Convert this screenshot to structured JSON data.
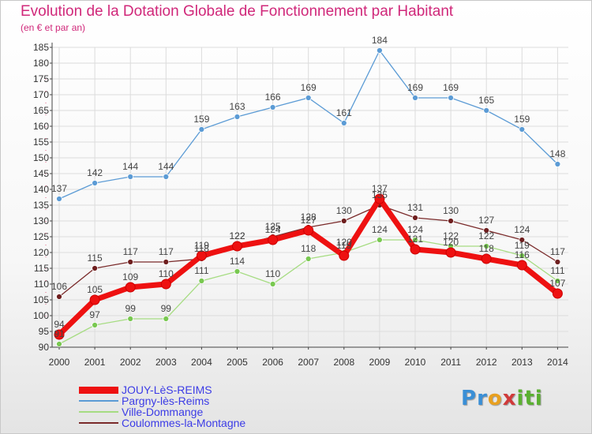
{
  "title": "Evolution de la Dotation Globale de Fonctionnement par Habitant",
  "subtitle": "(en € et par an)",
  "brand": {
    "text": "Proxiti",
    "colors": [
      "#3a8fd6",
      "#e8a020",
      "#d03a3a",
      "#5ab030"
    ]
  },
  "chart_data": {
    "type": "line",
    "title": "Evolution de la Dotation Globale de Fonctionnement par Habitant",
    "subtitle": "(en € et par an)",
    "xlabel": "",
    "ylabel": "",
    "ylim": [
      90,
      185
    ],
    "yticks": [
      90,
      95,
      100,
      105,
      110,
      115,
      120,
      125,
      130,
      135,
      140,
      145,
      150,
      155,
      160,
      165,
      170,
      175,
      180,
      185
    ],
    "grid": true,
    "legend_position": "bottom-left",
    "categories": [
      "2000",
      "2001",
      "2002",
      "2003",
      "2004",
      "2005",
      "2006",
      "2007",
      "2008",
      "2009",
      "2010",
      "2011",
      "2012",
      "2013",
      "2014"
    ],
    "series": [
      {
        "name": "JOUY-LèS-REIMS",
        "color": "#ee1111",
        "emphasis": true,
        "values": [
          94,
          105,
          109,
          110,
          119,
          122,
          124,
          127,
          119,
          137,
          121,
          120,
          118,
          116,
          107
        ]
      },
      {
        "name": "Pargny-lès-Reims",
        "color": "#5b9bd5",
        "values": [
          137,
          142,
          144,
          144,
          159,
          163,
          166,
          169,
          161,
          184,
          169,
          169,
          165,
          159,
          148
        ]
      },
      {
        "name": "Ville-Dommange",
        "color": "#a6dc82",
        "point_color": "#78c850",
        "values": [
          91,
          97,
          99,
          99,
          111,
          114,
          110,
          118,
          120,
          124,
          124,
          122,
          122,
          119,
          111
        ]
      },
      {
        "name": "Coulommes-la-Montagne",
        "color": "#7a2a2a",
        "point_color": "#6e1e1e",
        "values": [
          106,
          115,
          117,
          117,
          118,
          122,
          125,
          128,
          130,
          135,
          131,
          130,
          127,
          124,
          117
        ]
      }
    ]
  }
}
